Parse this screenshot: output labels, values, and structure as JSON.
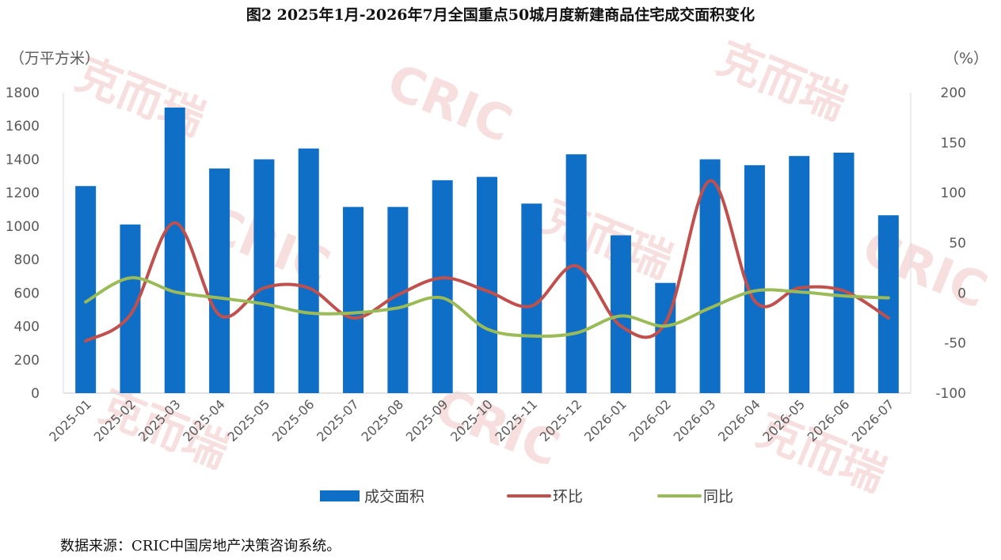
{
  "title": "图2 2025年1月-2026年7月全国重点50城月度新建商品住宅成交面积变化",
  "source": "数据来源：CRIC中国房地产决策咨询系统。",
  "watermark": {
    "text_cn": "克而瑞",
    "text_en": "CRIC"
  },
  "colors": {
    "bar": "#0f6fc6",
    "mom": "#c0504d",
    "yoy": "#9bbb59",
    "axis": "#d9d9d9",
    "tick": "#595959"
  },
  "chart_data": {
    "type": "bar",
    "categories": [
      "2025-01",
      "2025-02",
      "2025-03",
      "2025-04",
      "2025-05",
      "2025-06",
      "2025-07",
      "2025-08",
      "2025-09",
      "2025-10",
      "2025-11",
      "2025-12",
      "2026-01",
      "2026-02",
      "2026-03",
      "2026-04",
      "2026-05",
      "2026-06",
      "2026-07"
    ],
    "left_axis": {
      "unit": "（万平方米）",
      "min": 0,
      "max": 1800,
      "step": 200
    },
    "right_axis": {
      "unit": "（%）",
      "min": -100,
      "max": 200,
      "step": 50
    },
    "series": [
      {
        "name": "成交面积",
        "type": "bar",
        "axis": "left",
        "values": [
          1240,
          1010,
          1710,
          1345,
          1400,
          1465,
          1115,
          1115,
          1275,
          1295,
          1135,
          1430,
          945,
          660,
          1400,
          1365,
          1420,
          1440,
          1065
        ]
      },
      {
        "name": "环比",
        "type": "line",
        "axis": "right",
        "values": [
          -48,
          -22,
          70,
          -22,
          5,
          5,
          -25,
          -2,
          15,
          2,
          -13,
          27,
          -33,
          -30,
          112,
          -8,
          5,
          2,
          -25
        ]
      },
      {
        "name": "同比",
        "type": "line",
        "axis": "right",
        "values": [
          -9,
          15,
          1,
          -5,
          -11,
          -20,
          -20,
          -15,
          -5,
          -36,
          -43,
          -40,
          -23,
          -33,
          -15,
          2,
          1,
          -3,
          -5
        ]
      }
    ],
    "legend": "bottom"
  }
}
